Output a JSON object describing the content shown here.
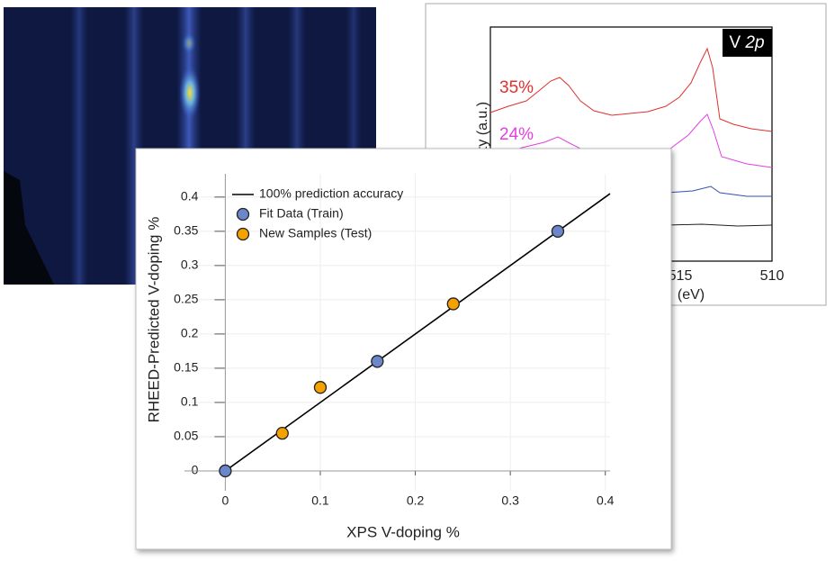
{
  "chart_data": {
    "type": "scatter",
    "xlabel": "XPS V-doping %",
    "ylabel": "RHEED-Predicted V-doping %",
    "xlim": [
      -0.043,
      0.405
    ],
    "ylim": [
      -0.029,
      0.434
    ],
    "xticks": [
      0,
      0.1,
      0.2,
      0.3,
      0.4
    ],
    "yticks": [
      0,
      0.05,
      0.1,
      0.15,
      0.2,
      0.25,
      0.3,
      0.35,
      0.4
    ],
    "grid": true,
    "legend": "upper left",
    "series": [
      {
        "name": "100% prediction accuracy",
        "type": "line",
        "color": "#000000",
        "x": [
          0,
          0.405
        ],
        "values": [
          0,
          0.405
        ]
      },
      {
        "name": "Fit Data (Train)",
        "type": "scatter",
        "color": "#6b86c9",
        "x": [
          0,
          0.16,
          0.35
        ],
        "values": [
          0,
          0.16,
          0.35
        ]
      },
      {
        "name": "New Samples (Test)",
        "type": "scatter",
        "color": "#f5a100",
        "x": [
          0.06,
          0.1,
          0.24
        ],
        "values": [
          0.055,
          0.122,
          0.244
        ]
      }
    ]
  },
  "xps_inset": {
    "title_main": "V",
    "title_italic": "2p",
    "ylabel": "ty (a.u.)",
    "xlabel": "(eV)",
    "xtick_labels": [
      "515",
      "510"
    ],
    "curve_labels": [
      "35%",
      "24%"
    ]
  }
}
